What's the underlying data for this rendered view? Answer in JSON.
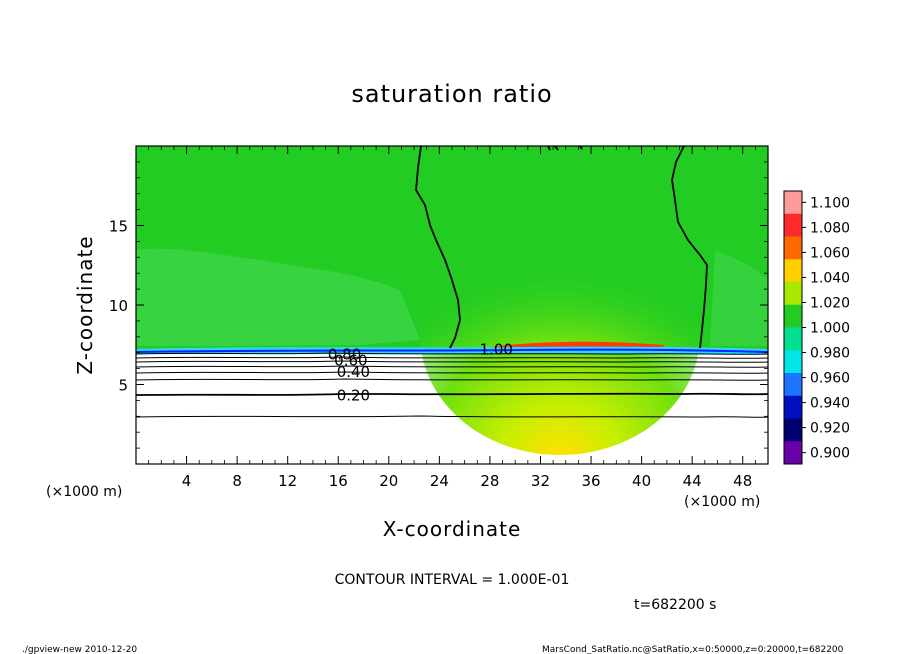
{
  "chart_data": {
    "type": "heatmap",
    "title": "saturation ratio",
    "xlabel": "X-coordinate",
    "ylabel": "Z-coordinate",
    "x_unit_left": "(×1000 m)",
    "x_unit_right": "(×1000 m)",
    "xlim": [
      0,
      50
    ],
    "ylim": [
      0,
      20
    ],
    "xticks": [
      "4",
      "8",
      "12",
      "16",
      "20",
      "24",
      "28",
      "32",
      "36",
      "40",
      "44",
      "48"
    ],
    "xtick_values": [
      4,
      8,
      12,
      16,
      20,
      24,
      28,
      32,
      36,
      40,
      44,
      48
    ],
    "yticks": [
      "5",
      "10",
      "15"
    ],
    "ytick_values": [
      5,
      10,
      15
    ],
    "contour_labels": [
      {
        "text": "0.80",
        "x": 16.5,
        "z": 6.9
      },
      {
        "text": "0.60",
        "x": 17.0,
        "z": 6.5
      },
      {
        "text": "0.40",
        "x": 17.2,
        "z": 5.8
      },
      {
        "text": "0.20",
        "x": 17.2,
        "z": 4.3
      },
      {
        "text": "1.00",
        "x": 28.5,
        "z": 7.2
      }
    ],
    "colorbar": {
      "levels": [
        "1.100",
        "1.080",
        "1.060",
        "1.040",
        "1.020",
        "1.000",
        "0.980",
        "0.960",
        "0.940",
        "0.920",
        "0.900"
      ],
      "colors": [
        "#ff9a9a",
        "#ff2a2a",
        "#ff6a00",
        "#ffd000",
        "#a8e800",
        "#22cc22",
        "#00e090",
        "#00e6e6",
        "#1c74ff",
        "#0010c0",
        "#000070",
        "#6a00a8"
      ]
    },
    "contour_interval": "CONTOUR INTERVAL = 1.000E-01",
    "time_label": "t=682200 s",
    "footer_left": "./gpview-new  2010-12-20",
    "footer_right": "MarsCond_SatRatio.nc@SatRatio,x=0:50000,z=0:20000,t=682200"
  },
  "colors": {
    "field_green": "#22cc22",
    "field_lightgreen": "#55d85a",
    "cyan_band": "#2ad8ff",
    "blue_line": "#0020ff",
    "red_core": "#ff2a00"
  }
}
